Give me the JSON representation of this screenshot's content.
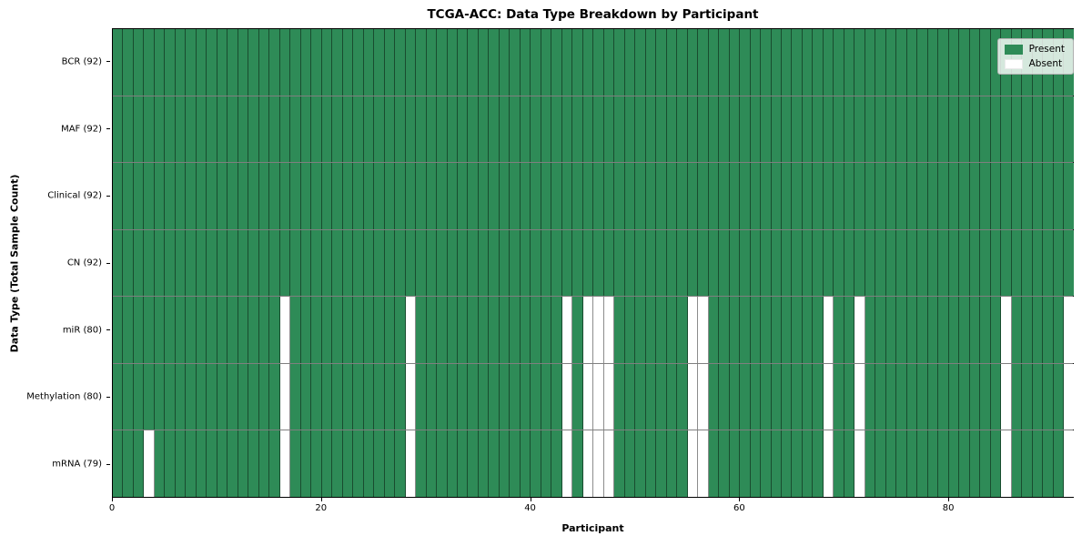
{
  "chart_data": {
    "type": "heatmap",
    "title": "TCGA-ACC: Data Type Breakdown by Participant",
    "xlabel": "Participant",
    "ylabel": "Data Type (Total Sample Count)",
    "n_participants": 92,
    "x_ticks": [
      0,
      20,
      40,
      60,
      80
    ],
    "x_range": [
      0,
      92
    ],
    "grid": "cell-edges",
    "colors": {
      "present": "#2e8b57",
      "absent": "#ffffff"
    },
    "legend": {
      "position": "upper right",
      "items": [
        {
          "label": "Present",
          "color": "#2e8b57"
        },
        {
          "label": "Absent",
          "color": "#ffffff"
        }
      ]
    },
    "rows": [
      {
        "name": "BCR",
        "label": "BCR (92)",
        "present_count": 92,
        "absent_participants": []
      },
      {
        "name": "MAF",
        "label": "MAF (92)",
        "present_count": 92,
        "absent_participants": []
      },
      {
        "name": "Clinical",
        "label": "Clinical (92)",
        "present_count": 92,
        "absent_participants": []
      },
      {
        "name": "CN",
        "label": "CN (92)",
        "present_count": 92,
        "absent_participants": []
      },
      {
        "name": "miR",
        "label": "miR (80)",
        "present_count": 80,
        "absent_participants": [
          16,
          28,
          43,
          45,
          46,
          47,
          55,
          56,
          68,
          71,
          85,
          91
        ]
      },
      {
        "name": "Methylation",
        "label": "Methylation (80)",
        "present_count": 80,
        "absent_participants": [
          16,
          28,
          43,
          45,
          46,
          47,
          55,
          56,
          68,
          71,
          85,
          91
        ]
      },
      {
        "name": "mRNA",
        "label": "mRNA (79)",
        "present_count": 79,
        "absent_participants": [
          3,
          16,
          28,
          43,
          45,
          46,
          47,
          55,
          56,
          68,
          71,
          85,
          91
        ]
      }
    ]
  }
}
